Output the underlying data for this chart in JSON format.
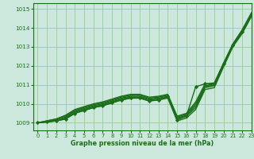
{
  "title": "Graphe pression niveau de la mer (hPa)",
  "bg_color": "#cce8dc",
  "grid_color": "#99cc99",
  "line_color": "#1a6e1a",
  "marker_color": "#1a6e1a",
  "xlim": [
    -0.5,
    23
  ],
  "ylim": [
    1008.6,
    1015.3
  ],
  "yticks": [
    1009,
    1010,
    1011,
    1012,
    1013,
    1014,
    1015
  ],
  "xticks": [
    0,
    1,
    2,
    3,
    4,
    5,
    6,
    7,
    8,
    9,
    10,
    11,
    12,
    13,
    14,
    15,
    16,
    17,
    18,
    19,
    20,
    21,
    22,
    23
  ],
  "series": [
    {
      "y": [
        1009.0,
        1009.05,
        1009.1,
        1009.25,
        1009.55,
        1009.7,
        1009.85,
        1009.95,
        1010.1,
        1010.25,
        1010.35,
        1010.35,
        1010.2,
        1010.25,
        1010.35,
        1009.2,
        1009.35,
        1009.8,
        1010.85,
        1010.95,
        1012.0,
        1013.05,
        1013.75,
        1014.65
      ],
      "marker": false,
      "lw": 1.0
    },
    {
      "y": [
        1009.0,
        1009.05,
        1009.15,
        1009.3,
        1009.6,
        1009.75,
        1009.9,
        1010.0,
        1010.15,
        1010.3,
        1010.4,
        1010.4,
        1010.25,
        1010.3,
        1010.4,
        1009.25,
        1009.4,
        1009.9,
        1010.9,
        1011.0,
        1012.05,
        1013.1,
        1013.8,
        1014.7
      ],
      "marker": false,
      "lw": 1.0
    },
    {
      "y": [
        1009.0,
        1009.1,
        1009.2,
        1009.35,
        1009.65,
        1009.8,
        1009.95,
        1010.05,
        1010.2,
        1010.35,
        1010.45,
        1010.45,
        1010.3,
        1010.35,
        1010.45,
        1009.3,
        1009.45,
        1010.0,
        1010.95,
        1011.05,
        1012.1,
        1013.15,
        1013.85,
        1014.75
      ],
      "marker": false,
      "lw": 1.0
    },
    {
      "y": [
        1009.0,
        1009.1,
        1009.2,
        1009.4,
        1009.7,
        1009.85,
        1010.0,
        1010.1,
        1010.25,
        1010.4,
        1010.5,
        1010.5,
        1010.35,
        1010.4,
        1010.5,
        1009.35,
        1009.5,
        1010.1,
        1011.05,
        1011.1,
        1012.15,
        1013.15,
        1013.9,
        1014.8
      ],
      "marker": false,
      "lw": 1.0
    },
    {
      "y": [
        1009.0,
        1009.05,
        1009.1,
        1009.2,
        1009.5,
        1009.65,
        1009.8,
        1009.9,
        1010.05,
        1010.2,
        1010.3,
        1010.3,
        1010.15,
        1010.2,
        1010.3,
        1009.1,
        1009.25,
        1009.7,
        1010.75,
        1010.85,
        1011.95,
        1013.0,
        1013.7,
        1014.6
      ],
      "marker": false,
      "lw": 1.0
    },
    {
      "y": [
        1009.0,
        1009.05,
        1009.1,
        1009.2,
        1009.5,
        1009.65,
        1009.8,
        1009.9,
        1010.05,
        1010.2,
        1010.3,
        1010.3,
        1010.15,
        1010.2,
        1010.4,
        1009.15,
        1009.35,
        1010.9,
        1011.05,
        1011.05,
        1012.1,
        1013.1,
        1013.8,
        1014.72
      ],
      "marker": true,
      "lw": 1.0
    }
  ]
}
